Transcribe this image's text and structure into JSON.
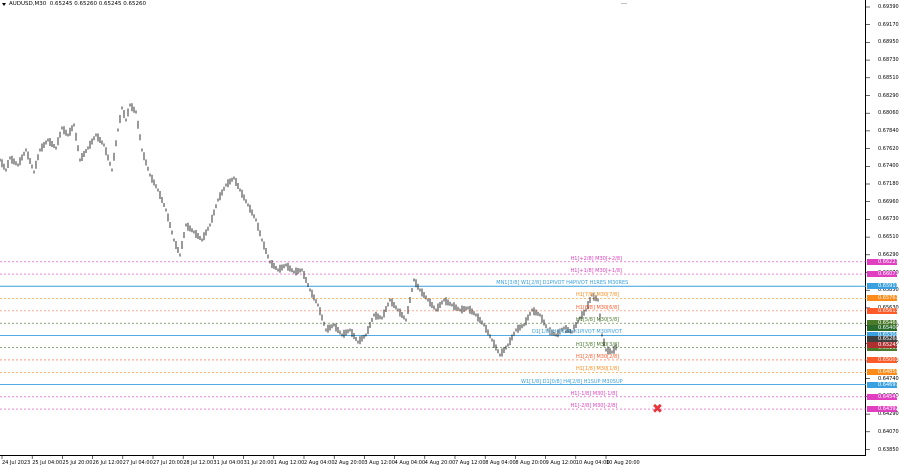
{
  "header": {
    "symbol": "AUDUSD,M30",
    "ohlc": "0.65245 0.65260 0.65245 0.65260"
  },
  "y_axis": {
    "labels": [
      "0.69390",
      "0.69170",
      "0.68950",
      "0.68730",
      "0.68510",
      "0.68290",
      "0.68060",
      "0.67840",
      "0.67620",
      "0.67400",
      "0.67180",
      "0.66960",
      "0.66730",
      "0.66510",
      "0.66290",
      "0.66070",
      "0.65850",
      "0.65630",
      "0.65400",
      "0.65180",
      "0.64960",
      "0.64740",
      "0.64520",
      "0.64290",
      "0.64070",
      "0.63850"
    ]
  },
  "x_axis": {
    "labels": [
      "24 Jul 2023",
      "25 Jul 04:00",
      "25 Jul 20:00",
      "26 Jul 12:00",
      "27 Jul 04:00",
      "27 Jul 20:00",
      "28 Jul 12:00",
      "31 Jul 04:00",
      "31 Jul 20:00",
      "1 Aug 12:00",
      "2 Aug 04:00",
      "2 Aug 20:00",
      "3 Aug 12:00",
      "4 Aug 04:00",
      "4 Aug 20:00",
      "7 Aug 12:00",
      "8 Aug 04:00",
      "8 Aug 20:00",
      "9 Aug 12:00",
      "10 Aug 04:00",
      "10 Aug 20:00"
    ]
  },
  "levels": [
    {
      "label": "H1[+2/8] M30[+2/8]",
      "tag": "0.66223",
      "color": "#e040c0",
      "style": "dashed"
    },
    {
      "label": "H1[+1/8] M30[+1/8]",
      "tag": "0.66071",
      "color": "#e040c0",
      "style": "dashed"
    },
    {
      "label": "MN1[3/8] W1[2/8] D1PIVOT H4PIVOT H1RES M30RES",
      "tag": "0.65919",
      "color": "#3aa0e0",
      "style": "solid"
    },
    {
      "label": "H1[7/8] M30[7/8]",
      "tag": "0.65767",
      "color": "#ff8c1a",
      "style": "dashed"
    },
    {
      "label": "H1[6/8] M30[6/8]",
      "tag": "0.65613",
      "color": "#ff5a2a",
      "style": "dashed"
    },
    {
      "label": "H1[5/8] M30[5/8]",
      "tag": "0.65460",
      "color": "#4a7a2a",
      "style": "dashed"
    },
    {
      "label": "D1[1/8] H4[3/8] H1PIVOT M30PIVOT",
      "tag": "0.65308",
      "color": "#3aa0e0",
      "style": "solid"
    },
    {
      "label": "H1[3/8] M30[3/8]",
      "tag": "0.65155",
      "color": "#4a7a2a",
      "style": "dashed"
    },
    {
      "label": "H1[2/8] M30[2/8]",
      "tag": "0.65003",
      "color": "#ff5a2a",
      "style": "dashed"
    },
    {
      "label": "H1[1/8] M30[1/8]",
      "tag": "0.64850",
      "color": "#ff8c1a",
      "style": "dashed"
    },
    {
      "label": "W1[1/8] D1[0/8] H4[2/8] H1SUP M30SUP",
      "tag": "0.64697",
      "color": "#3aa0e0",
      "style": "solid"
    },
    {
      "label": "H1[-1/8] M30[-1/8]",
      "tag": "0.64545",
      "color": "#e040c0",
      "style": "dashed"
    },
    {
      "label": "H1[-2/8] M30[-2/8]",
      "tag": "0.64392",
      "color": "#e040c0",
      "style": "dashed"
    }
  ],
  "current_price": {
    "bid": "0.65260",
    "ask": "0.65245"
  },
  "extra_tag": "0.65400",
  "colors": {
    "candles": "#000000",
    "grid": "#ffffff"
  }
}
